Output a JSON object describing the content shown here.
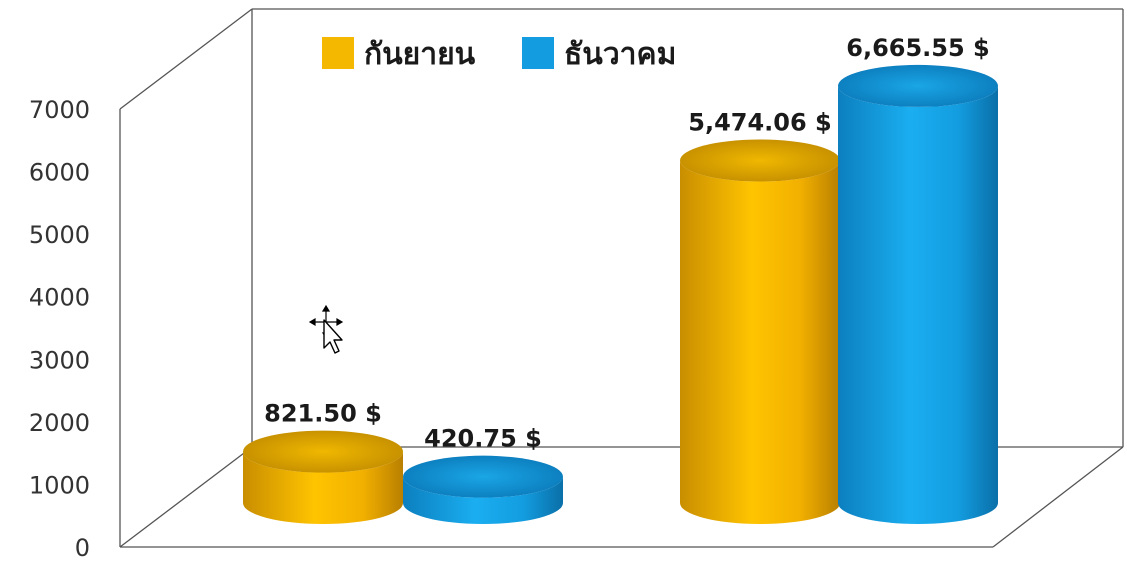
{
  "chart_data": {
    "type": "bar",
    "style": "3d-cylinder",
    "categories": [
      "",
      ""
    ],
    "series": [
      {
        "name": "กันยายน",
        "color": "#F5B800",
        "values": [
          821.5,
          5474.06
        ],
        "labels": [
          "821.50 $",
          "5,474.06 $"
        ]
      },
      {
        "name": "ธันวาคม",
        "color": "#139DE0",
        "values": [
          420.75,
          6665.55
        ],
        "labels": [
          "420.75 $",
          "6,665.55 $"
        ]
      }
    ],
    "y_ticks": [
      "0",
      "1000",
      "2000",
      "3000",
      "4000",
      "5000",
      "6000",
      "7000"
    ],
    "ylim": [
      0,
      7000
    ],
    "grid": false,
    "legend_position": "top",
    "title": "",
    "xlabel": "",
    "ylabel": ""
  },
  "cursor": {
    "icon": "move-cursor-icon"
  }
}
